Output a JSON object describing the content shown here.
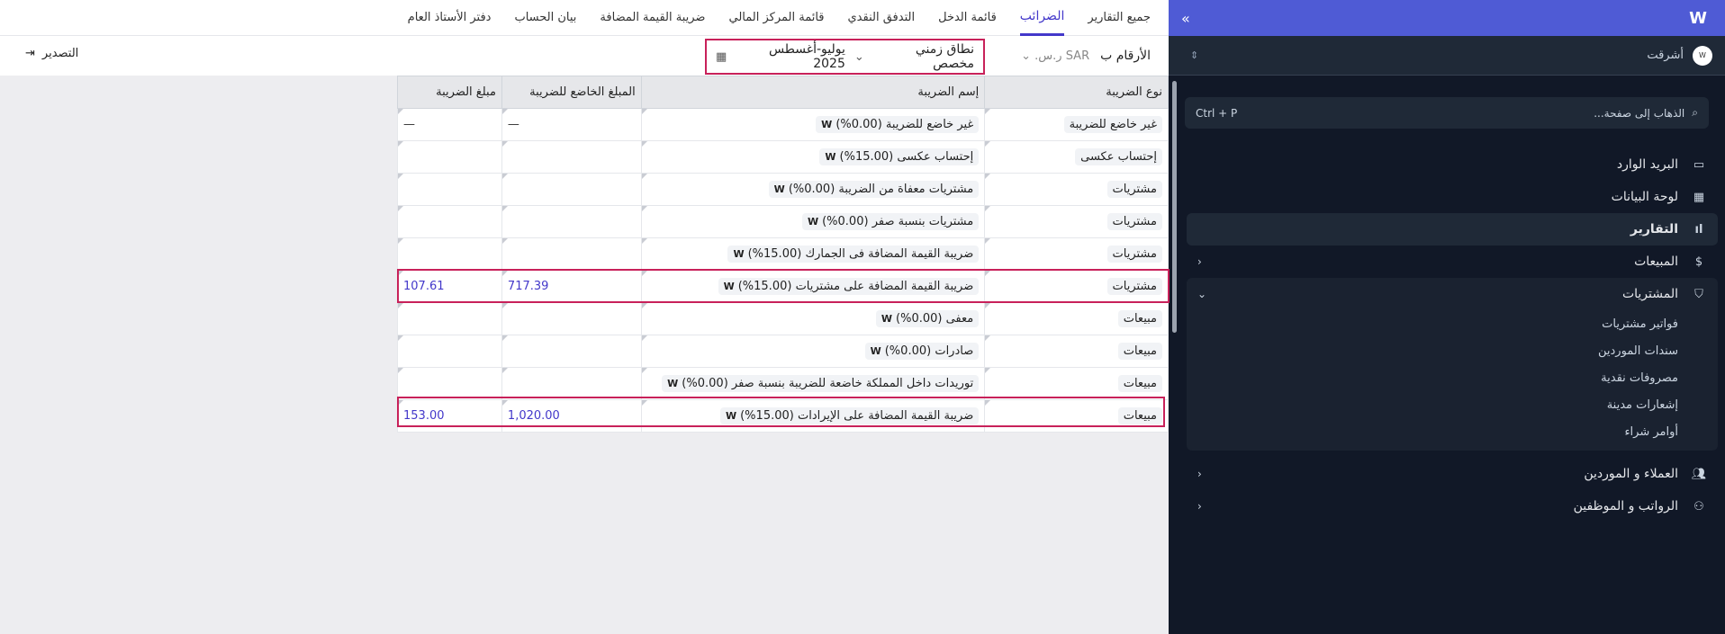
{
  "sidebar": {
    "org": "أشرقت",
    "search_placeholder": "الذهاب إلى صفحة...",
    "search_shortcut": "Ctrl + P",
    "items": [
      {
        "label": "البريد الوارد",
        "icon": "inbox-icon"
      },
      {
        "label": "لوحة البيانات",
        "icon": "dashboard-icon"
      },
      {
        "label": "التقارير",
        "icon": "chart-icon"
      },
      {
        "label": "المبيعات",
        "icon": "dollar-icon"
      },
      {
        "label": "المشتريات",
        "icon": "bag-icon"
      },
      {
        "label": "العملاء و الموردين",
        "icon": "users-icon"
      },
      {
        "label": "الرواتب و الموظفين",
        "icon": "payroll-icon"
      }
    ],
    "purchases_sub": [
      "فواتير مشتريات",
      "سندات الموردين",
      "مصروفات نقدية",
      "إشعارات مدينة",
      "أوامر شراء"
    ]
  },
  "tabs": [
    "جميع التقارير",
    "الضرائب",
    "قائمة الدخل",
    "التدفق النقدي",
    "قائمة المركز المالي",
    "ضريبة القيمة المضافة",
    "بيان الحساب",
    "دفتر الأستاذ العام"
  ],
  "toolbar": {
    "numbers_in": "الأرقام ب",
    "currency": "SAR ر.س.",
    "range_type": "نطاق زمني مخصص",
    "period": "يوليو-أغسطس 2025",
    "export": "التصدير"
  },
  "table": {
    "headers": [
      "نوع الضريبة",
      "إسم الضريبة",
      "المبلغ الخاضع للضريبة",
      "مبلغ الضريبة"
    ],
    "rows": [
      [
        "غير خاضع للضريبة",
        "غير خاضع للضريبة (0.00%)",
        "—",
        "—"
      ],
      [
        "إحتساب عكسى",
        "إحتساب عكسى (15.00%)",
        "",
        ""
      ],
      [
        "مشتريات",
        "مشتريات معفاة من الضريبة (0.00%)",
        "",
        ""
      ],
      [
        "مشتريات",
        "مشتريات بنسبة صفر (0.00%)",
        "",
        ""
      ],
      [
        "مشتريات",
        "ضريبة القيمة المضافة فى الجمارك (15.00%)",
        "",
        ""
      ],
      [
        "مشتريات",
        "ضريبة القيمة المضافة على مشتريات (15.00%)",
        "717.39",
        "107.61"
      ],
      [
        "مبيعات",
        "معفى (0.00%)",
        "",
        ""
      ],
      [
        "مبيعات",
        "صادرات (0.00%)",
        "",
        ""
      ],
      [
        "مبيعات",
        "توريدات داخل المملكة خاضعة للضريبة بنسبة صفر (0.00%)",
        "",
        ""
      ],
      [
        "مبيعات",
        "ضريبة القيمة المضافة على الإيرادات (15.00%)",
        "1,020.00",
        "153.00"
      ]
    ]
  },
  "colors": {
    "accent": "#4338ca",
    "highlight": "#c8215a",
    "sidebar_bg": "#111827",
    "brand": "#4f5bd5"
  }
}
